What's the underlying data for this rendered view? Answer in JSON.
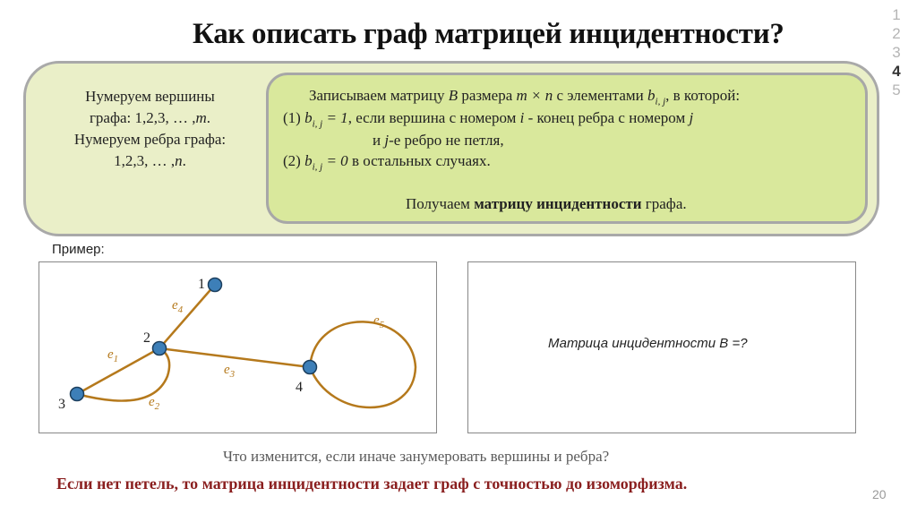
{
  "title": "Как описать граф матрицей инцидентности?",
  "pages": [
    "1",
    "2",
    "3",
    "4",
    "5"
  ],
  "active_page": "4",
  "left_panel": {
    "line1": "Нумеруем вершины",
    "line2_pre": "графа: 1,2,3, … ,",
    "line2_math": "m",
    "line3": "Нумеруем ребра графа:",
    "line4_pre": "1,2,3, … ,",
    "line4_math": "n"
  },
  "definition": {
    "l1_pre": "Записываем матрицу",
    "l1_B": "B",
    "l1_mid": "размера",
    "l1_size": "m × n",
    "l1_post": "с элементами",
    "l1_b": "b",
    "l1_sub": "i, j",
    "l1_end": ", в которой:",
    "l2_num": "(1)",
    "l2_eq": "= 1",
    "l2_mid": ", если вершина с номером",
    "l2_i": "i",
    "l2_mid2": "- конец ребра с номером",
    "l2_j": "j",
    "l3_pre": "и",
    "l3_j": "j",
    "l3_post": "-е ребро не петля,",
    "l4_num": "(2)",
    "l4_eq": "= 0",
    "l4_post": "в остальных случаях.",
    "l5_pre": "Получаем",
    "l5_bold": "матрицу инцидентности",
    "l5_post": "графа."
  },
  "example_label": "Пример:",
  "graph": {
    "vertex_labels": [
      "1",
      "2",
      "3",
      "4"
    ],
    "edge_labels": [
      "e",
      "e",
      "e",
      "e",
      "e"
    ],
    "edge_subs": [
      "1",
      "2",
      "3",
      "4",
      "5"
    ],
    "edge_color": "#b5791c",
    "vertex_color": "#3d7fb8"
  },
  "matrix_question": "Матрица инцидентности B =?",
  "question": "Что изменится, если иначе занумеровать вершины и ребра?",
  "conclusion": "Если нет петель, то матрица инцидентности задает граф с точностью до изоморфизма.",
  "slide_number": "20"
}
